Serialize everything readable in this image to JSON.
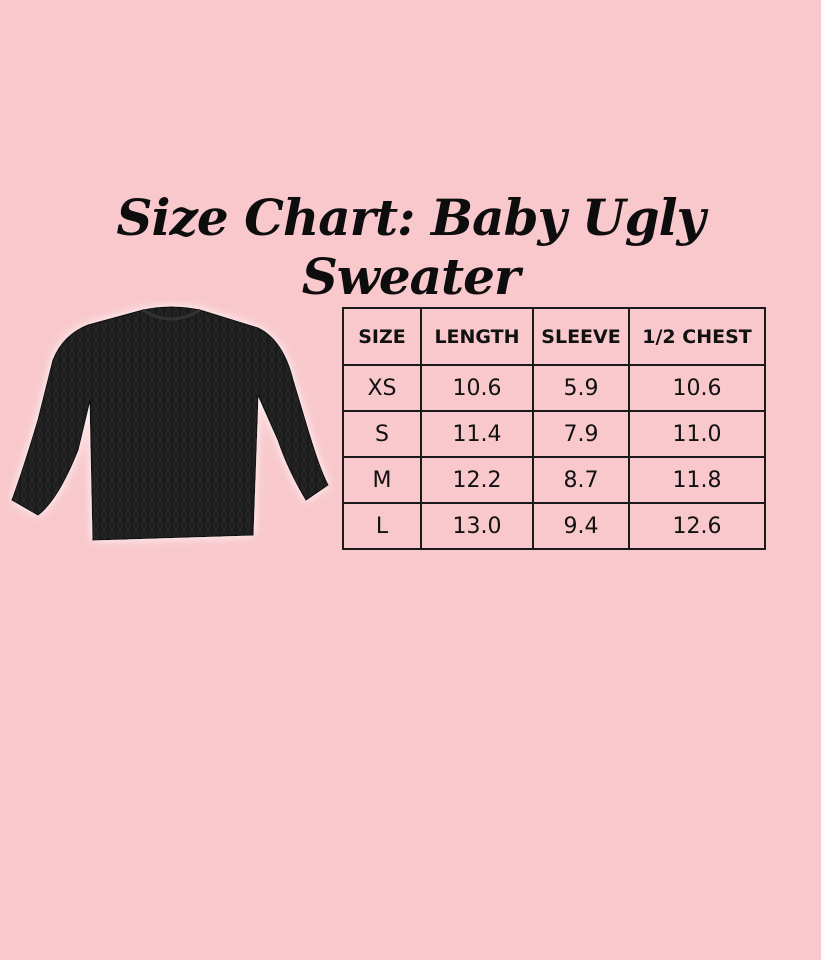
{
  "title": "Size Chart: Baby Ugly Sweater",
  "colors": {
    "background": "#f8c8cc",
    "text": "#111111",
    "sweater": "#1b1b1b"
  },
  "image": {
    "subject": "black knit sweater"
  },
  "table": {
    "headers": [
      "SIZE",
      "LENGTH",
      "SLEEVE",
      "1/2 CHEST"
    ],
    "rows": [
      [
        "XS",
        "10.6",
        "5.9",
        "10.6"
      ],
      [
        "S",
        "11.4",
        "7.9",
        "11.0"
      ],
      [
        "M",
        "12.2",
        "8.7",
        "11.8"
      ],
      [
        "L",
        "13.0",
        "9.4",
        "12.6"
      ]
    ]
  }
}
